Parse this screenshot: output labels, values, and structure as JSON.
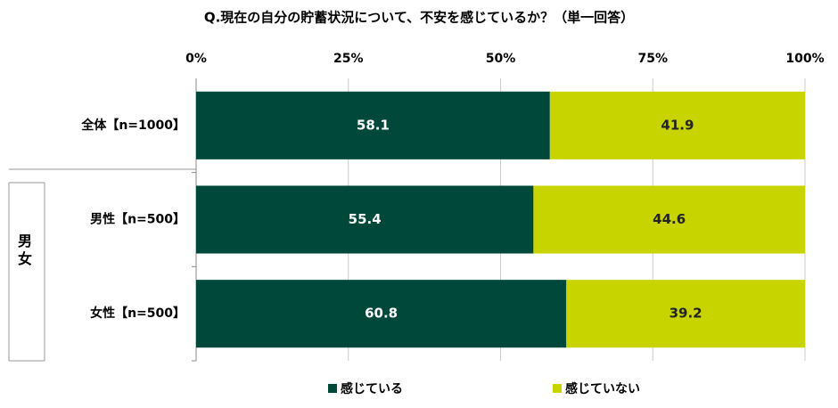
{
  "chart_data": {
    "type": "stacked_bar_horizontal",
    "title": "Q.現在の自分の貯蓄状況について、不安を感じているか？（単一回答）",
    "categories": [
      "全体【n=1000】",
      "男性【n=500】",
      "女性【n=500】"
    ],
    "group_label": "男女",
    "series": [
      {
        "name": "感じている",
        "color": "#00483a",
        "values": [
          58.1,
          55.4,
          60.8
        ]
      },
      {
        "name": "感じていない",
        "color": "#c8d400",
        "values": [
          41.9,
          44.6,
          39.2
        ]
      }
    ],
    "xlim": [
      0,
      100
    ],
    "xticks": [
      {
        "value": 0,
        "label": "0%"
      },
      {
        "value": 25,
        "label": "25%"
      },
      {
        "value": 50,
        "label": "50%"
      },
      {
        "value": 75,
        "label": "75%"
      },
      {
        "value": 100,
        "label": "100%"
      }
    ],
    "legend": "bottom"
  }
}
